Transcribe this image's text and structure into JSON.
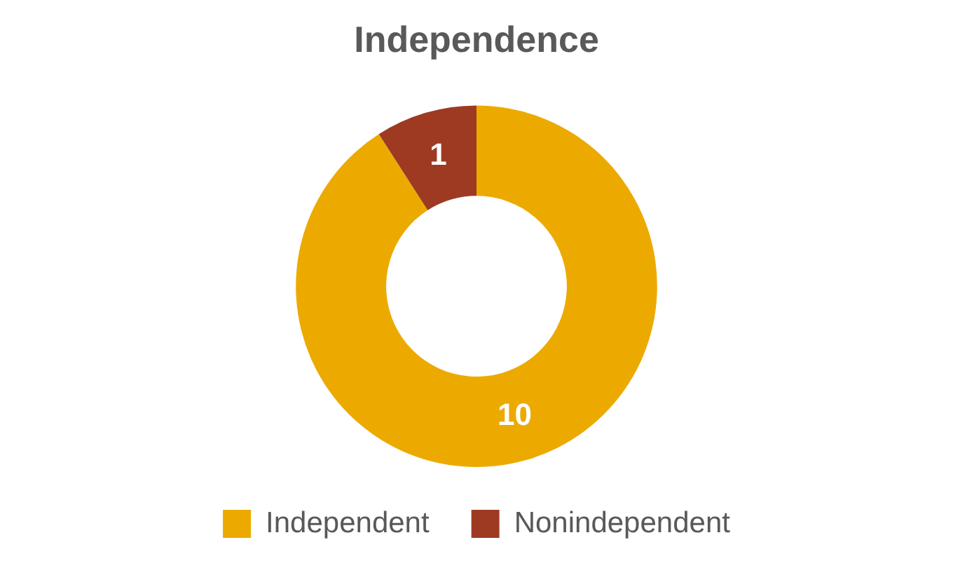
{
  "chart_data": {
    "type": "donut",
    "title": "Independence",
    "categories": [
      "Independent",
      "Nonindependent"
    ],
    "values": [
      10,
      1
    ],
    "colors": [
      "#ecaa00",
      "#9e3a22"
    ],
    "legend": "bottom",
    "data_labels": true
  }
}
